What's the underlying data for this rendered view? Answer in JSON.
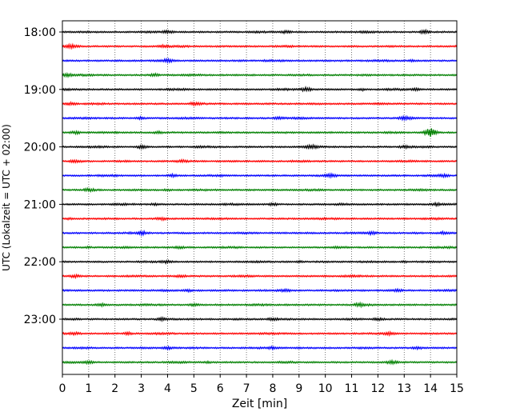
{
  "chart_data": {
    "type": "line",
    "title": "",
    "xlabel": "Zeit  [min]",
    "ylabel": "UTC (Lokalzeit = UTC + 02:00)",
    "xlim": [
      0,
      15
    ],
    "x_ticks": [
      "0",
      "1",
      "2",
      "3",
      "4",
      "5",
      "6",
      "7",
      "8",
      "9",
      "10",
      "11",
      "12",
      "13",
      "14",
      "15"
    ],
    "y_ticks": [
      "18:00",
      "19:00",
      "20:00",
      "21:00",
      "22:00",
      "23:00"
    ],
    "grid": "vertical dotted",
    "trace_colors": [
      "#000000",
      "#ff0000",
      "#0000ff",
      "#008000"
    ],
    "traces": [
      {
        "start": "18:00",
        "color": "#000000",
        "events": [
          [
            4,
            0.6
          ],
          [
            8.5,
            0.6
          ],
          [
            13.8,
            0.9
          ]
        ]
      },
      {
        "start": "18:15",
        "color": "#ff0000",
        "events": [
          [
            0.3,
            0.6
          ],
          [
            3.8,
            0.5
          ]
        ]
      },
      {
        "start": "18:30",
        "color": "#0000ff",
        "events": [
          [
            4.0,
            0.6
          ],
          [
            6.8,
            0.4
          ],
          [
            13.3,
            0.5
          ]
        ]
      },
      {
        "start": "18:45",
        "color": "#008000",
        "events": [
          [
            0.2,
            0.8
          ],
          [
            3.5,
            0.6
          ]
        ]
      },
      {
        "start": "19:00",
        "color": "#000000",
        "events": [
          [
            9.3,
            1.0
          ],
          [
            11.4,
            0.6
          ],
          [
            13.5,
            0.6
          ]
        ]
      },
      {
        "start": "19:15",
        "color": "#ff0000",
        "events": [
          [
            0.3,
            0.6
          ],
          [
            5.0,
            0.6
          ]
        ]
      },
      {
        "start": "19:30",
        "color": "#0000ff",
        "events": [
          [
            3.0,
            0.5
          ],
          [
            8.2,
            0.5
          ],
          [
            13.0,
            0.5
          ]
        ]
      },
      {
        "start": "19:45",
        "color": "#008000",
        "events": [
          [
            0.5,
            0.6
          ],
          [
            3.6,
            0.6
          ],
          [
            14.0,
            2.5
          ]
        ]
      },
      {
        "start": "20:00",
        "color": "#000000",
        "events": [
          [
            3.0,
            0.6
          ],
          [
            9.5,
            0.7
          ],
          [
            13.0,
            0.5
          ]
        ]
      },
      {
        "start": "20:15",
        "color": "#ff0000",
        "events": [
          [
            0.5,
            0.6
          ],
          [
            4.5,
            0.5
          ]
        ]
      },
      {
        "start": "20:30",
        "color": "#0000ff",
        "events": [
          [
            4.2,
            0.6
          ],
          [
            10.2,
            0.5
          ],
          [
            14.5,
            0.5
          ]
        ]
      },
      {
        "start": "20:45",
        "color": "#008000",
        "events": [
          [
            1.0,
            0.6
          ],
          [
            4.0,
            0.6
          ]
        ]
      },
      {
        "start": "21:00",
        "color": "#000000",
        "events": [
          [
            3.5,
            0.5
          ],
          [
            8.0,
            0.6
          ],
          [
            14.2,
            0.5
          ]
        ]
      },
      {
        "start": "21:15",
        "color": "#ff0000",
        "events": [
          [
            0.3,
            0.6
          ],
          [
            3.8,
            0.5
          ]
        ]
      },
      {
        "start": "21:30",
        "color": "#0000ff",
        "events": [
          [
            3.0,
            0.7
          ],
          [
            11.8,
            0.8
          ],
          [
            14.5,
            0.6
          ]
        ]
      },
      {
        "start": "21:45",
        "color": "#008000",
        "events": [
          [
            1.0,
            0.5
          ],
          [
            4.5,
            0.5
          ]
        ]
      },
      {
        "start": "22:00",
        "color": "#000000",
        "events": [
          [
            4.0,
            0.6
          ],
          [
            9.0,
            0.6
          ],
          [
            13.0,
            0.5
          ]
        ]
      },
      {
        "start": "22:15",
        "color": "#ff0000",
        "events": [
          [
            0.5,
            0.6
          ],
          [
            4.5,
            0.5
          ]
        ]
      },
      {
        "start": "22:30",
        "color": "#0000ff",
        "events": [
          [
            4.8,
            0.6
          ],
          [
            8.5,
            0.6
          ],
          [
            12.8,
            0.6
          ]
        ]
      },
      {
        "start": "22:45",
        "color": "#008000",
        "events": [
          [
            1.5,
            0.6
          ],
          [
            5.0,
            0.5
          ],
          [
            11.3,
            0.7
          ]
        ]
      },
      {
        "start": "23:00",
        "color": "#000000",
        "events": [
          [
            3.8,
            0.6
          ],
          [
            8.0,
            0.6
          ],
          [
            12.0,
            0.5
          ]
        ]
      },
      {
        "start": "23:15",
        "color": "#ff0000",
        "events": [
          [
            0.5,
            0.6
          ],
          [
            2.5,
            0.7
          ],
          [
            12.5,
            0.6
          ]
        ]
      },
      {
        "start": "23:30",
        "color": "#0000ff",
        "events": [
          [
            4.0,
            0.6
          ],
          [
            8.0,
            0.5
          ],
          [
            13.5,
            0.5
          ]
        ]
      },
      {
        "start": "23:45",
        "color": "#008000",
        "events": [
          [
            1.0,
            0.6
          ],
          [
            5.5,
            0.5
          ],
          [
            12.5,
            0.5
          ]
        ]
      }
    ]
  }
}
